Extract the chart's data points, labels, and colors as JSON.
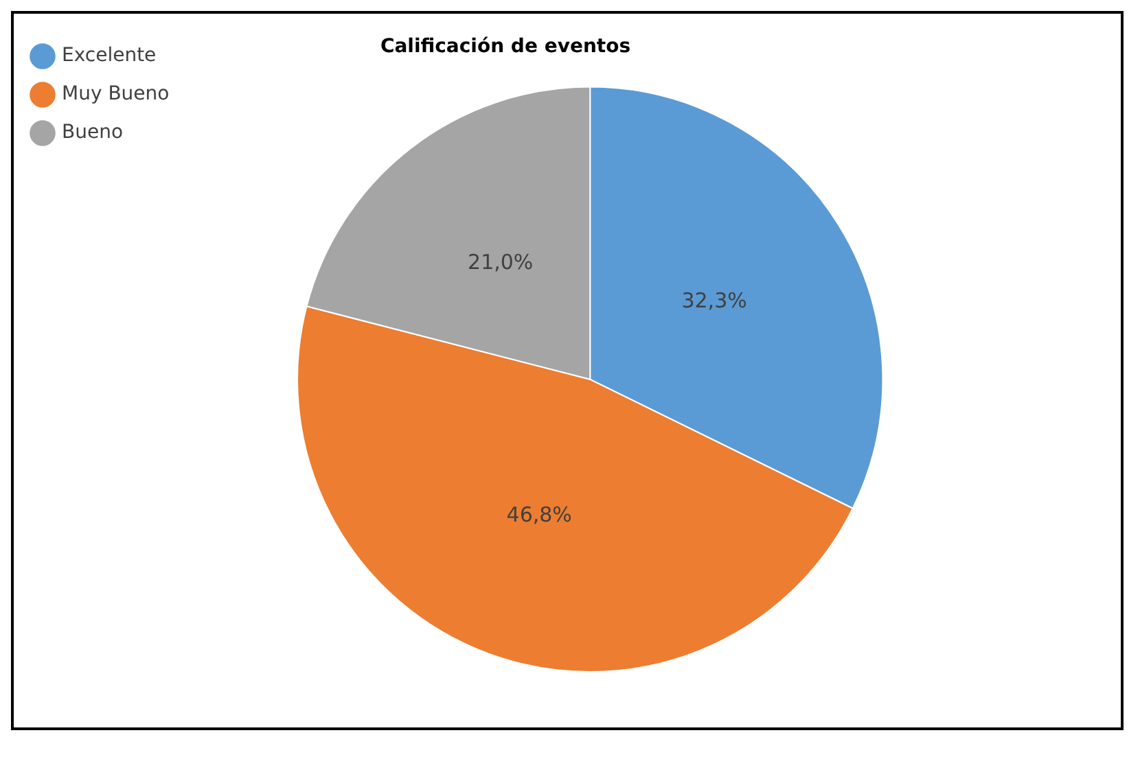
{
  "chart_data": {
    "type": "pie",
    "title": "Calificación de eventos",
    "categories": [
      "Excelente",
      "Muy Bueno",
      "Bueno"
    ],
    "values": [
      32.3,
      46.8,
      21.0
    ],
    "colors": [
      "#5b9bd5",
      "#ed7d31",
      "#a5a5a5"
    ],
    "value_labels": [
      "32,3%",
      "46,8%",
      "21,0%"
    ],
    "legend": "top left"
  }
}
